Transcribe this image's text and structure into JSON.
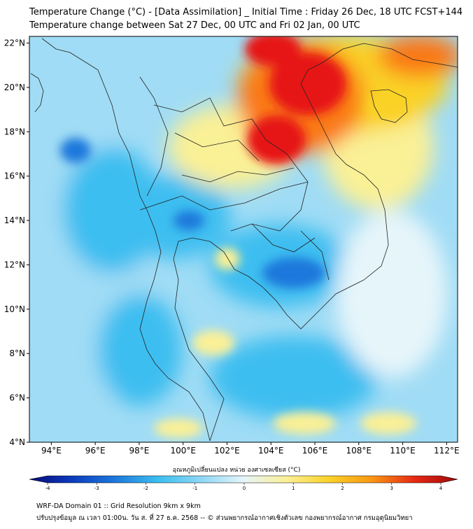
{
  "title_line1": "Temperature Change (°C) - [Data Assimilation] _ Initial Time : Friday 26 Dec, 18 UTC FCST+144",
  "title_line2": "Temperature change between Sat 27 Dec, 00 UTC and Fri 02 Jan, 00 UTC",
  "map": {
    "lon_range": [
      93,
      112.5
    ],
    "lat_range": [
      4,
      22.3
    ],
    "lon_ticks": [
      {
        "value": 94,
        "label": "94°E"
      },
      {
        "value": 96,
        "label": "96°E"
      },
      {
        "value": 98,
        "label": "98°E"
      },
      {
        "value": 100,
        "label": "100°E"
      },
      {
        "value": 102,
        "label": "102°E"
      },
      {
        "value": 104,
        "label": "104°E"
      },
      {
        "value": 106,
        "label": "106°E"
      },
      {
        "value": 108,
        "label": "108°E"
      },
      {
        "value": 110,
        "label": "110°E"
      },
      {
        "value": 112,
        "label": "112°E"
      }
    ],
    "lat_ticks": [
      {
        "value": 4,
        "label": "4°N"
      },
      {
        "value": 6,
        "label": "6°N"
      },
      {
        "value": 8,
        "label": "8°N"
      },
      {
        "value": 10,
        "label": "10°N"
      },
      {
        "value": 12,
        "label": "12°N"
      },
      {
        "value": 14,
        "label": "14°N"
      },
      {
        "value": 16,
        "label": "16°N"
      },
      {
        "value": 18,
        "label": "18°N"
      },
      {
        "value": 20,
        "label": "20°N"
      },
      {
        "value": 22,
        "label": "22°N"
      }
    ],
    "colors": {
      "cold_strong": "#1e78dc",
      "cold": "#3cbef0",
      "cool": "#a0dcf5",
      "neutral": "#e6f5fa",
      "warm": "#faf096",
      "warmer": "#fad228",
      "hot": "#fa7814",
      "hottest": "#e61414",
      "coastline": "#222222"
    }
  },
  "colorbar": {
    "label": "อุณหภูมิเปลี่ยนแปลง หน่วย องศาเซลเซียส (°C)",
    "min": -4,
    "max": 4,
    "ticks": [
      {
        "value": -4,
        "label": "-4"
      },
      {
        "value": -3,
        "label": "-3"
      },
      {
        "value": -2,
        "label": "-2"
      },
      {
        "value": -1,
        "label": "-1"
      },
      {
        "value": 0,
        "label": "0"
      },
      {
        "value": 1,
        "label": "1"
      },
      {
        "value": 2,
        "label": "2"
      },
      {
        "value": 3,
        "label": "3"
      },
      {
        "value": 4,
        "label": "4"
      }
    ],
    "colors": [
      "#0a0a78",
      "#0a3cbe",
      "#1e78dc",
      "#3cbef0",
      "#8cd7f5",
      "#e6f5fa",
      "#faf096",
      "#fad228",
      "#fa9614",
      "#e62814",
      "#a00a0a"
    ]
  },
  "footer_line1": "WRF-DA Domain 01 :: Grid Resolution 9km x 9km",
  "footer_line2": "ปรับปรุงข้อมูล ณ เวลา 01:00น. วัน ส. ที่ 27 ธ.ค. 2568 -- © ส่วนพยากรณ์อากาศเชิงตัวเลข กองพยากรณ์อากาศ กรมอุตุนิยมวิทยา"
}
